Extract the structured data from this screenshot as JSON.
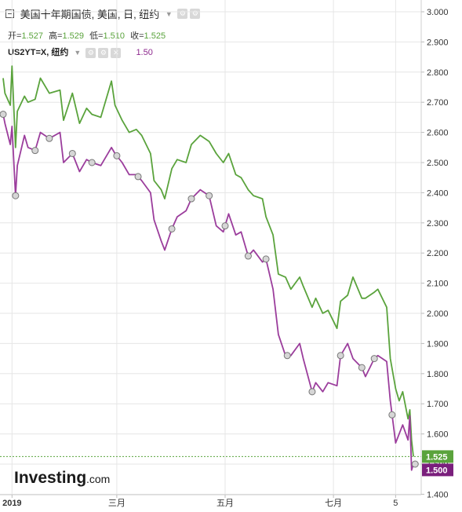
{
  "header": {
    "title": "美国十年期国债, 美国, 日, 纽约",
    "ohlc": [
      {
        "label": "开=",
        "value": "1.527"
      },
      {
        "label": "高=",
        "value": "1.529"
      },
      {
        "label": "低=",
        "value": "1.510"
      },
      {
        "label": "收=",
        "value": "1.525"
      }
    ],
    "compare_symbol": "US2YT=X, 纽约",
    "compare_value": "1.50"
  },
  "watermark": {
    "brand": "Investing",
    "suffix": ".com"
  },
  "colors": {
    "series_10y": "#5aa33c",
    "series_2y": "#9b3d9c",
    "ref_line": "#5aa33c",
    "grid": "#e6e6e6"
  },
  "chart_data": {
    "type": "line",
    "title": "",
    "xlabel": "",
    "ylabel": "",
    "ylim": [
      1.38,
      3.02
    ],
    "y_ticks": [
      "3.000",
      "2.900",
      "2.800",
      "2.700",
      "2.600",
      "2.500",
      "2.400",
      "2.300",
      "2.200",
      "2.100",
      "2.000",
      "1.900",
      "1.800",
      "1.700",
      "1.600",
      "1.500",
      "1.400"
    ],
    "x_ticks": [
      {
        "label": "2019",
        "x": "2019-01-01"
      },
      {
        "label": "三月",
        "x": "2019-03-01"
      },
      {
        "label": "五月",
        "x": "2019-05-01"
      },
      {
        "label": "七月",
        "x": "2019-07-01"
      },
      {
        "label": "5",
        "x": "2019-08-05"
      }
    ],
    "xlim": [
      "2018-12-27",
      "2019-08-15"
    ],
    "last_values": [
      {
        "series": "US10Y",
        "value": "1.525"
      },
      {
        "series": "US2Y",
        "value": "1.500"
      }
    ],
    "grid": true,
    "y_axis_position": "right",
    "series": [
      {
        "key": "US10Y",
        "points": [
          [
            "2018-12-27",
            2.78
          ],
          [
            "2018-12-28",
            2.73
          ],
          [
            "2018-12-31",
            2.69
          ],
          [
            "2019-01-01",
            2.82
          ],
          [
            "2019-01-03",
            2.55
          ],
          [
            "2019-01-04",
            2.67
          ],
          [
            "2019-01-08",
            2.72
          ],
          [
            "2019-01-10",
            2.7
          ],
          [
            "2019-01-14",
            2.71
          ],
          [
            "2019-01-17",
            2.78
          ],
          [
            "2019-01-22",
            2.73
          ],
          [
            "2019-01-28",
            2.74
          ],
          [
            "2019-01-30",
            2.64
          ],
          [
            "2019-02-04",
            2.73
          ],
          [
            "2019-02-08",
            2.63
          ],
          [
            "2019-02-12",
            2.68
          ],
          [
            "2019-02-15",
            2.66
          ],
          [
            "2019-02-20",
            2.65
          ],
          [
            "2019-02-26",
            2.77
          ],
          [
            "2019-02-28",
            2.69
          ],
          [
            "2019-03-04",
            2.64
          ],
          [
            "2019-03-08",
            2.6
          ],
          [
            "2019-03-12",
            2.61
          ],
          [
            "2019-03-15",
            2.59
          ],
          [
            "2019-03-20",
            2.53
          ],
          [
            "2019-03-22",
            2.44
          ],
          [
            "2019-03-26",
            2.41
          ],
          [
            "2019-03-28",
            2.38
          ],
          [
            "2019-04-01",
            2.48
          ],
          [
            "2019-04-04",
            2.51
          ],
          [
            "2019-04-09",
            2.5
          ],
          [
            "2019-04-12",
            2.56
          ],
          [
            "2019-04-17",
            2.59
          ],
          [
            "2019-04-22",
            2.57
          ],
          [
            "2019-04-26",
            2.53
          ],
          [
            "2019-04-30",
            2.5
          ],
          [
            "2019-05-03",
            2.53
          ],
          [
            "2019-05-07",
            2.46
          ],
          [
            "2019-05-10",
            2.45
          ],
          [
            "2019-05-14",
            2.41
          ],
          [
            "2019-05-17",
            2.39
          ],
          [
            "2019-05-22",
            2.38
          ],
          [
            "2019-05-24",
            2.32
          ],
          [
            "2019-05-28",
            2.26
          ],
          [
            "2019-05-31",
            2.13
          ],
          [
            "2019-06-04",
            2.12
          ],
          [
            "2019-06-07",
            2.08
          ],
          [
            "2019-06-12",
            2.12
          ],
          [
            "2019-06-14",
            2.09
          ],
          [
            "2019-06-19",
            2.02
          ],
          [
            "2019-06-21",
            2.05
          ],
          [
            "2019-06-25",
            2.0
          ],
          [
            "2019-06-28",
            2.01
          ],
          [
            "2019-07-03",
            1.95
          ],
          [
            "2019-07-05",
            2.04
          ],
          [
            "2019-07-09",
            2.06
          ],
          [
            "2019-07-12",
            2.12
          ],
          [
            "2019-07-17",
            2.05
          ],
          [
            "2019-07-19",
            2.05
          ],
          [
            "2019-07-24",
            2.07
          ],
          [
            "2019-07-26",
            2.08
          ],
          [
            "2019-07-31",
            2.02
          ],
          [
            "2019-08-02",
            1.85
          ],
          [
            "2019-08-05",
            1.75
          ],
          [
            "2019-08-07",
            1.71
          ],
          [
            "2019-08-09",
            1.74
          ],
          [
            "2019-08-12",
            1.65
          ],
          [
            "2019-08-13",
            1.68
          ],
          [
            "2019-08-14",
            1.58
          ],
          [
            "2019-08-15",
            1.525
          ]
        ]
      },
      {
        "key": "US2Y",
        "points": [
          [
            "2018-12-27",
            2.66
          ],
          [
            "2018-12-28",
            2.63
          ],
          [
            "2018-12-31",
            2.56
          ],
          [
            "2019-01-01",
            2.62
          ],
          [
            "2019-01-03",
            2.39
          ],
          [
            "2019-01-04",
            2.49
          ],
          [
            "2019-01-08",
            2.59
          ],
          [
            "2019-01-10",
            2.55
          ],
          [
            "2019-01-14",
            2.54
          ],
          [
            "2019-01-17",
            2.6
          ],
          [
            "2019-01-22",
            2.58
          ],
          [
            "2019-01-28",
            2.6
          ],
          [
            "2019-01-30",
            2.5
          ],
          [
            "2019-02-04",
            2.53
          ],
          [
            "2019-02-08",
            2.47
          ],
          [
            "2019-02-12",
            2.51
          ],
          [
            "2019-02-15",
            2.5
          ],
          [
            "2019-02-20",
            2.49
          ],
          [
            "2019-02-26",
            2.55
          ],
          [
            "2019-02-28",
            2.53
          ],
          [
            "2019-03-04",
            2.5
          ],
          [
            "2019-03-08",
            2.46
          ],
          [
            "2019-03-12",
            2.46
          ],
          [
            "2019-03-15",
            2.44
          ],
          [
            "2019-03-20",
            2.4
          ],
          [
            "2019-03-22",
            2.31
          ],
          [
            "2019-03-26",
            2.24
          ],
          [
            "2019-03-28",
            2.21
          ],
          [
            "2019-04-01",
            2.28
          ],
          [
            "2019-04-04",
            2.32
          ],
          [
            "2019-04-09",
            2.34
          ],
          [
            "2019-04-12",
            2.38
          ],
          [
            "2019-04-17",
            2.41
          ],
          [
            "2019-04-22",
            2.39
          ],
          [
            "2019-04-26",
            2.29
          ],
          [
            "2019-04-30",
            2.27
          ],
          [
            "2019-05-03",
            2.33
          ],
          [
            "2019-05-07",
            2.26
          ],
          [
            "2019-05-10",
            2.27
          ],
          [
            "2019-05-14",
            2.19
          ],
          [
            "2019-05-17",
            2.21
          ],
          [
            "2019-05-22",
            2.17
          ],
          [
            "2019-05-24",
            2.18
          ],
          [
            "2019-05-28",
            2.08
          ],
          [
            "2019-05-31",
            1.93
          ],
          [
            "2019-06-04",
            1.86
          ],
          [
            "2019-06-07",
            1.86
          ],
          [
            "2019-06-12",
            1.9
          ],
          [
            "2019-06-14",
            1.85
          ],
          [
            "2019-06-19",
            1.74
          ],
          [
            "2019-06-21",
            1.77
          ],
          [
            "2019-06-25",
            1.74
          ],
          [
            "2019-06-28",
            1.77
          ],
          [
            "2019-07-03",
            1.76
          ],
          [
            "2019-07-05",
            1.86
          ],
          [
            "2019-07-09",
            1.9
          ],
          [
            "2019-07-12",
            1.85
          ],
          [
            "2019-07-17",
            1.82
          ],
          [
            "2019-07-19",
            1.79
          ],
          [
            "2019-07-24",
            1.85
          ],
          [
            "2019-07-26",
            1.86
          ],
          [
            "2019-07-31",
            1.84
          ],
          [
            "2019-08-02",
            1.71
          ],
          [
            "2019-08-05",
            1.57
          ],
          [
            "2019-08-07",
            1.6
          ],
          [
            "2019-08-09",
            1.63
          ],
          [
            "2019-08-12",
            1.58
          ],
          [
            "2019-08-13",
            1.66
          ],
          [
            "2019-08-14",
            1.48
          ],
          [
            "2019-08-15",
            1.5
          ]
        ]
      }
    ],
    "events": [
      "2018-12-27",
      "2019-01-03",
      "2019-01-14",
      "2019-01-22",
      "2019-02-04",
      "2019-02-15",
      "2019-03-01",
      "2019-03-13",
      "2019-04-01",
      "2019-04-12",
      "2019-04-22",
      "2019-05-01",
      "2019-05-14",
      "2019-05-24",
      "2019-06-05",
      "2019-06-19",
      "2019-07-05",
      "2019-07-17",
      "2019-07-24",
      "2019-08-03",
      "2019-08-16"
    ]
  }
}
